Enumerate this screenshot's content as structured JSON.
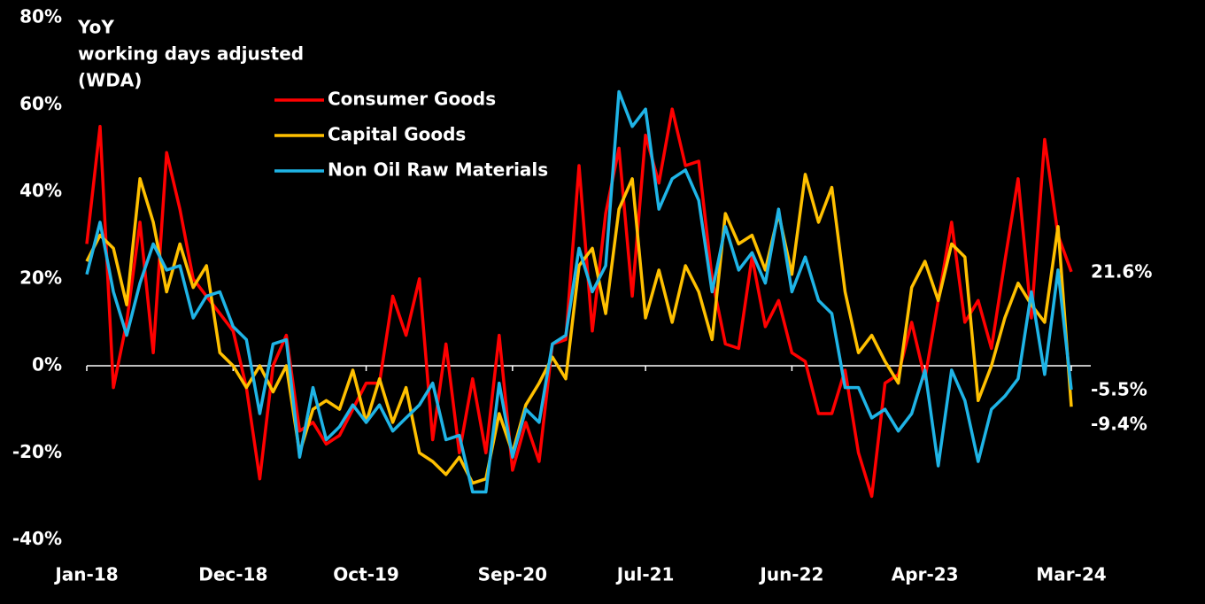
{
  "chart_data": {
    "type": "line",
    "title_lines": [
      "YoY",
      "working days adjusted",
      "(WDA)"
    ],
    "categories": [
      "Jan-18",
      null,
      null,
      null,
      null,
      null,
      null,
      null,
      null,
      null,
      null,
      "Dec-18",
      null,
      null,
      null,
      null,
      null,
      null,
      null,
      null,
      null,
      "Oct-19",
      null,
      null,
      null,
      null,
      null,
      null,
      null,
      null,
      null,
      null,
      "Sep-20",
      null,
      null,
      null,
      null,
      null,
      null,
      null,
      null,
      null,
      "Jul-21",
      null,
      null,
      null,
      null,
      null,
      null,
      null,
      null,
      null,
      null,
      "Jun-22",
      null,
      null,
      null,
      null,
      null,
      null,
      null,
      null,
      null,
      "Apr-23",
      null,
      null,
      null,
      null,
      null,
      null,
      null,
      null,
      null,
      null,
      "Mar-24"
    ],
    "series": [
      {
        "name": "Consumer Goods",
        "color": "#ff0000",
        "end_label": "21.6%",
        "values": [
          28,
          55,
          -5,
          10,
          33,
          3,
          49,
          36,
          20,
          16,
          12,
          8,
          -5,
          -26,
          0,
          7,
          -15,
          -13,
          -18,
          -16,
          -10,
          -4,
          -4,
          16,
          7,
          20,
          -17,
          5,
          -20,
          -3,
          -20,
          7,
          -24,
          -13,
          -22,
          5,
          6,
          46,
          8,
          35,
          50,
          16,
          53,
          42,
          59,
          46,
          47,
          20,
          5,
          4,
          25,
          9,
          15,
          3,
          1,
          -11,
          -11,
          -1,
          -20,
          -30,
          -4,
          -2,
          10,
          -3,
          15,
          33,
          10,
          15,
          4,
          24,
          43,
          11,
          52,
          30,
          21.6
        ]
      },
      {
        "name": "Capital Goods",
        "color": "#ffc000",
        "end_label": "-9.4%",
        "values": [
          24,
          30,
          27,
          14,
          43,
          33,
          17,
          28,
          18,
          23,
          3,
          0,
          -5,
          0,
          -6,
          0,
          -20,
          -10,
          -8,
          -10,
          -1,
          -13,
          -3,
          -13,
          -5,
          -20,
          -22,
          -25,
          -21,
          -27,
          -26,
          -11,
          -20,
          -9,
          -4,
          2,
          -3,
          23,
          27,
          12,
          36,
          43,
          11,
          22,
          10,
          23,
          17,
          6,
          35,
          28,
          30,
          22,
          35,
          21,
          44,
          33,
          41,
          17,
          3,
          7,
          1,
          -4,
          18,
          24,
          15,
          28,
          25,
          -8,
          0,
          11,
          19,
          14,
          10,
          32,
          -9.4
        ]
      },
      {
        "name": "Non Oil Raw Materials",
        "color": "#1fb4e6",
        "end_label": "-5.5%",
        "values": [
          21,
          33,
          17,
          7,
          19,
          28,
          22,
          23,
          11,
          16,
          17,
          9,
          6,
          -11,
          5,
          6,
          -21,
          -5,
          -17,
          -14,
          -9,
          -13,
          -9,
          -15,
          -12,
          -9,
          -4,
          -17,
          -16,
          -29,
          -29,
          -4,
          -21,
          -10,
          -13,
          5,
          7,
          27,
          17,
          23,
          63,
          55,
          59,
          36,
          43,
          45,
          38,
          17,
          32,
          22,
          26,
          19,
          36,
          17,
          25,
          15,
          12,
          -5,
          -5,
          -12,
          -10,
          -15,
          -11,
          -1,
          -23,
          -1,
          -8,
          -22,
          -10,
          -7,
          -3,
          17,
          -2,
          22,
          -5.5
        ]
      }
    ],
    "ylim": [
      -40,
      80
    ],
    "yticks": [
      {
        "value": -40,
        "label": "-40%"
      },
      {
        "value": -20,
        "label": "-20%"
      },
      {
        "value": 0,
        "label": "0%"
      },
      {
        "value": 20,
        "label": "20%"
      },
      {
        "value": 40,
        "label": "40%"
      },
      {
        "value": 60,
        "label": "60%"
      },
      {
        "value": 80,
        "label": "80%"
      }
    ],
    "grid": false
  }
}
